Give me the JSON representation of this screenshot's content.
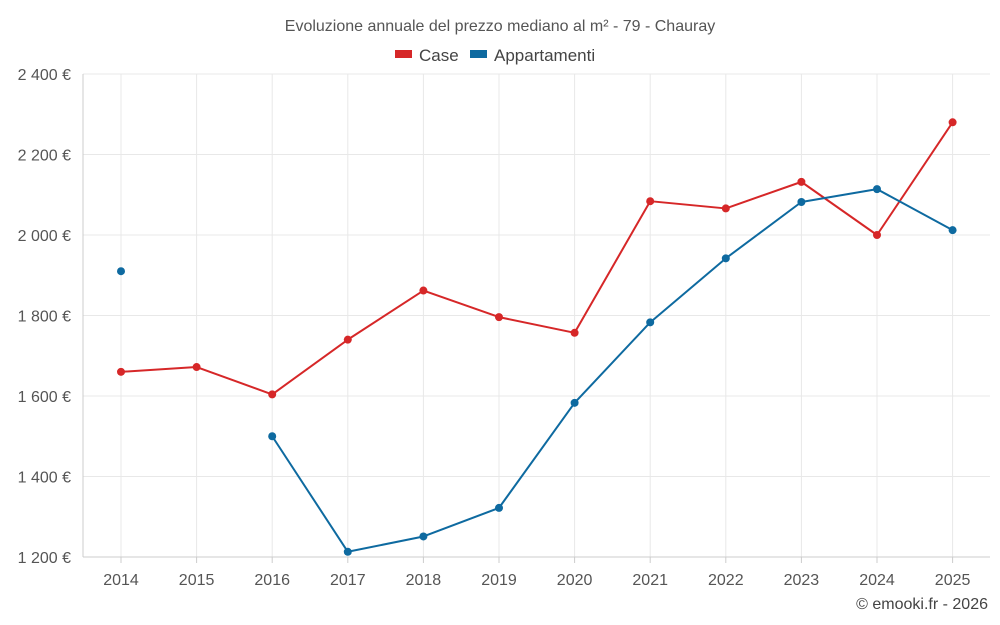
{
  "chart_data": {
    "type": "line",
    "title": "Evoluzione annuale del prezzo mediano al m² - 79 - Chauray",
    "categories": [
      "2014",
      "2015",
      "2016",
      "2017",
      "2018",
      "2019",
      "2020",
      "2021",
      "2022",
      "2023",
      "2024",
      "2025"
    ],
    "series": [
      {
        "name": "Case",
        "color": "#d62728",
        "values": [
          1660,
          1672,
          1604,
          1740,
          1862,
          1796,
          1757,
          2084,
          2066,
          2132,
          2000,
          2280
        ]
      },
      {
        "name": "Appartamenti",
        "color": "#0e6aa0",
        "values": [
          1910,
          null,
          1500,
          1213,
          1251,
          1322,
          1583,
          1783,
          1942,
          2082,
          2114,
          2012
        ]
      }
    ],
    "y_ticks": [
      1200,
      1400,
      1600,
      1800,
      2000,
      2200,
      2400
    ],
    "y_tick_labels": [
      "1 200 €",
      "1 400 €",
      "1 600 €",
      "1 800 €",
      "2 000 €",
      "2 200 €",
      "2 400 €"
    ],
    "ylim": [
      1200,
      2400
    ],
    "xlabel": "",
    "ylabel": "",
    "grid": true,
    "legend_position": "top-center"
  },
  "credit": "© emooki.fr - 2026"
}
